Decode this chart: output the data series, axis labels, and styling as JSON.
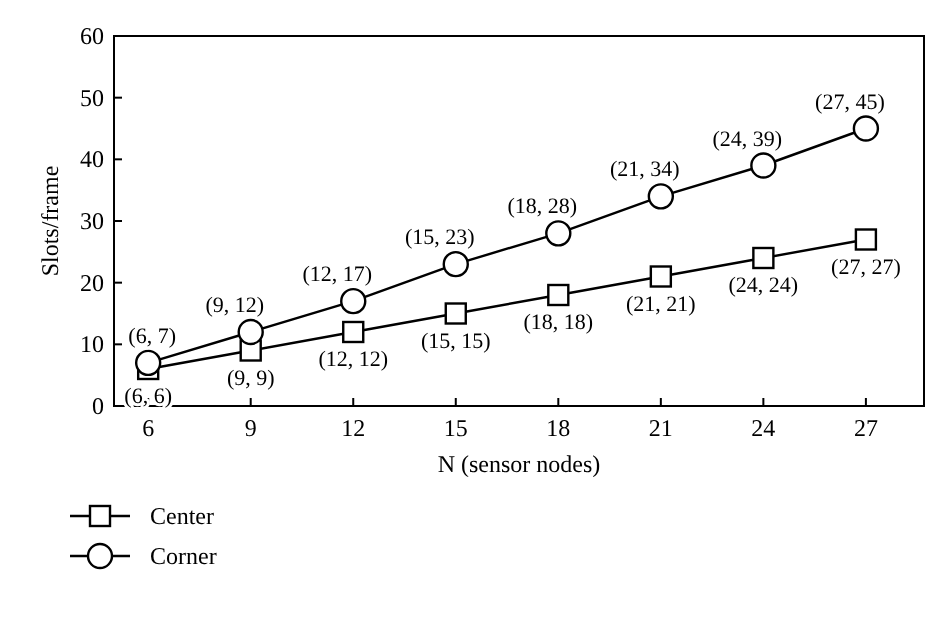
{
  "chart_data": {
    "type": "line",
    "xlabel": "N (sensor nodes)",
    "ylabel": "Slots/frame",
    "x": [
      6,
      9,
      12,
      15,
      18,
      21,
      24,
      27
    ],
    "xlim": [
      5,
      28.7
    ],
    "xticks": [
      6,
      9,
      12,
      15,
      18,
      21,
      24,
      27
    ],
    "ylim": [
      0,
      60
    ],
    "yticks": [
      0,
      10,
      20,
      30,
      40,
      50,
      60
    ],
    "grid": false,
    "legend": "bottom left",
    "series": [
      {
        "name": "Center",
        "color": "#000000",
        "marker": "square",
        "values": [
          6,
          9,
          12,
          15,
          18,
          21,
          24,
          27
        ],
        "value_labels": [
          "(6, 6)",
          "(9, 9)",
          "(12, 12)",
          "(15, 15)",
          "(18, 18)",
          "(21, 21)",
          "(24, 24)",
          "(27, 27)"
        ]
      },
      {
        "name": "Corner",
        "color": "#000000",
        "marker": "circle",
        "values": [
          7,
          12,
          17,
          23,
          28,
          34,
          39,
          45
        ],
        "value_labels": [
          "(6, 7)",
          "(9, 12)",
          "(12, 17)",
          "(15, 23)",
          "(18, 28)",
          "(21, 34)",
          "(24, 39)",
          "(27, 45)"
        ]
      }
    ]
  }
}
